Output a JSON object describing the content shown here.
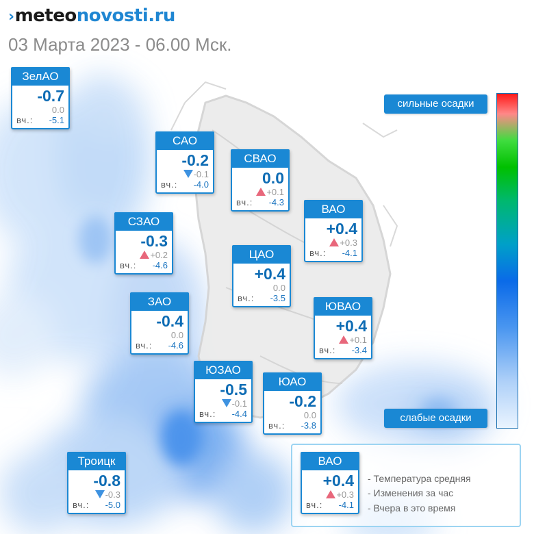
{
  "brand": {
    "arrow": "›",
    "part1": "meteo",
    "part2": "novosti.ru"
  },
  "date": "03 Марта 2023 - 06.00 Мск.",
  "colors": {
    "accent": "#1a88d4",
    "up": "#e8677b",
    "down": "#3e92e0"
  },
  "yesterday_label": "вч.:",
  "districts": [
    {
      "id": "zelao",
      "name": "ЗелАО",
      "temp": "-0.7",
      "change": "0.0",
      "trend": "none",
      "yesterday": "-5.1"
    },
    {
      "id": "sao",
      "name": "САО",
      "temp": "-0.2",
      "change": "-0.1",
      "trend": "down",
      "yesterday": "-4.0"
    },
    {
      "id": "svao",
      "name": "СВАО",
      "temp": "0.0",
      "change": "+0.1",
      "trend": "up",
      "yesterday": "-4.3"
    },
    {
      "id": "vao",
      "name": "ВАО",
      "temp": "+0.4",
      "change": "+0.3",
      "trend": "up",
      "yesterday": "-4.1"
    },
    {
      "id": "szao",
      "name": "СЗАО",
      "temp": "-0.3",
      "change": "+0.2",
      "trend": "up",
      "yesterday": "-4.6"
    },
    {
      "id": "cao",
      "name": "ЦАО",
      "temp": "+0.4",
      "change": "0.0",
      "trend": "none",
      "yesterday": "-3.5"
    },
    {
      "id": "zao",
      "name": "ЗАО",
      "temp": "-0.4",
      "change": "0.0",
      "trend": "none",
      "yesterday": "-4.6"
    },
    {
      "id": "yuvao",
      "name": "ЮВАО",
      "temp": "+0.4",
      "change": "+0.1",
      "trend": "up",
      "yesterday": "-3.4"
    },
    {
      "id": "yuzao",
      "name": "ЮЗАО",
      "temp": "-0.5",
      "change": "-0.1",
      "trend": "down",
      "yesterday": "-4.4"
    },
    {
      "id": "yuao",
      "name": "ЮАО",
      "temp": "-0.2",
      "change": "0.0",
      "trend": "none",
      "yesterday": "-3.8"
    },
    {
      "id": "troitsk",
      "name": "Троицк",
      "temp": "-0.8",
      "change": "-0.3",
      "trend": "down",
      "yesterday": "-5.0"
    }
  ],
  "scale": {
    "strong": "сильные осадки",
    "weak": "слабые осадки"
  },
  "legend": {
    "example": {
      "name": "ВАО",
      "temp": "+0.4",
      "change": "+0.3",
      "trend": "up",
      "yesterday": "-4.1"
    },
    "lines": [
      "- Температура средняя",
      "- Изменения за час",
      "- Вчера в это время"
    ]
  }
}
